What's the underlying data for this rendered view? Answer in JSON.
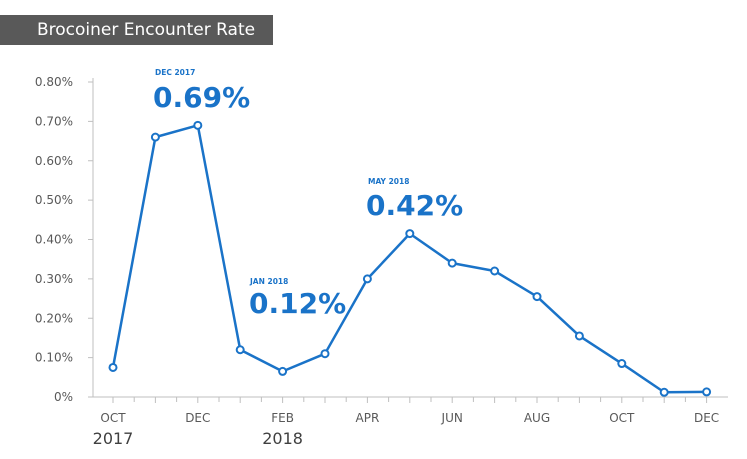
{
  "chart_data": {
    "type": "line",
    "title": "Brocoiner Encounter Rate",
    "xlabel": "",
    "ylabel": "",
    "ylim": [
      0,
      0.8
    ],
    "y_tick_labels": [
      "0%",
      "0.10%",
      "0.20%",
      "0.30%",
      "0.40%",
      "0.50%",
      "0.60%",
      "0.70%",
      "0.80%"
    ],
    "x": [
      "2017-10",
      "2017-11",
      "2017-12",
      "2018-01",
      "2018-02",
      "2018-03",
      "2018-04",
      "2018-05",
      "2018-06",
      "2018-07",
      "2018-08",
      "2018-09",
      "2018-10",
      "2018-11",
      "2018-12"
    ],
    "x_tick_labels": [
      "OCT",
      "DEC",
      "FEB",
      "APR",
      "JUN",
      "AUG",
      "OCT",
      "DEC"
    ],
    "year_labels": [
      "2017",
      "2018"
    ],
    "series": [
      {
        "values": [
          0.075,
          0.66,
          0.69,
          0.12,
          0.065,
          0.11,
          0.3,
          0.415,
          0.34,
          0.32,
          0.255,
          0.155,
          0.085,
          0.012,
          0.013
        ]
      }
    ],
    "annotations": [
      {
        "label": "DEC 2017",
        "value": "0.69%"
      },
      {
        "label": "JAN 2018",
        "value": "0.12%"
      },
      {
        "label": "MAY 2018",
        "value": "0.42%"
      }
    ],
    "line_color": "#1a73c8",
    "grid": false
  }
}
